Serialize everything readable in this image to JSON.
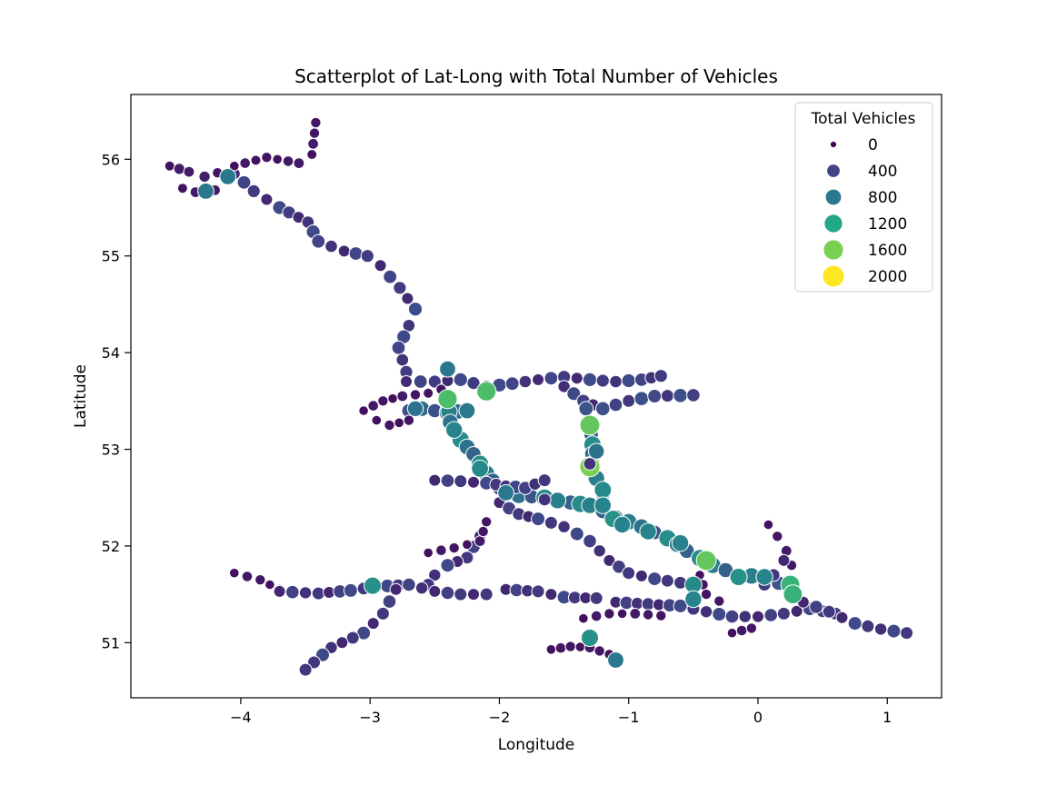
{
  "chart_data": {
    "type": "scatter",
    "title": "Scatterplot of Lat-Long with Total Number of Vehicles",
    "xlabel": "Longitude",
    "ylabel": "Latitude",
    "xlim": [
      -4.85,
      1.42
    ],
    "ylim": [
      50.43,
      56.67
    ],
    "xticks": [
      -4,
      -3,
      -2,
      -1,
      0,
      1
    ],
    "xtick_labels": [
      "−4",
      "−3",
      "−2",
      "−1",
      "0",
      "1"
    ],
    "yticks": [
      51,
      52,
      53,
      54,
      55,
      56
    ],
    "ytick_labels": [
      "51",
      "52",
      "53",
      "54",
      "55",
      "56"
    ],
    "grid": false,
    "legend": {
      "title": "Total Vehicles",
      "placement": "top-right",
      "entries": [
        {
          "label": "0",
          "value": 0,
          "color": "#440154"
        },
        {
          "label": "400",
          "value": 400,
          "color": "#414487"
        },
        {
          "label": "800",
          "value": 800,
          "color": "#2a788e"
        },
        {
          "label": "1200",
          "value": 1200,
          "color": "#22a884"
        },
        {
          "label": "1600",
          "value": 1600,
          "color": "#7ad151"
        },
        {
          "label": "2000",
          "value": 2000,
          "color": "#fde725"
        }
      ]
    },
    "marker_edge_color": "#ffffff",
    "polylines": [
      {
        "v": 150,
        "pts": [
          [
            -4.55,
            55.93
          ],
          [
            -4.4,
            55.87
          ],
          [
            -4.28,
            55.82
          ],
          [
            -4.18,
            55.86
          ],
          [
            -4.08,
            55.84
          ]
        ]
      },
      {
        "v": 350,
        "pts": [
          [
            -4.05,
            55.85
          ],
          [
            -3.9,
            55.67
          ],
          [
            -3.7,
            55.5
          ],
          [
            -3.48,
            55.35
          ],
          [
            -3.4,
            55.15
          ],
          [
            -3.2,
            55.05
          ],
          [
            -3.02,
            55.0
          ],
          [
            -2.92,
            54.9
          ]
        ]
      },
      {
        "v": 350,
        "pts": [
          [
            -2.92,
            54.9
          ],
          [
            -2.77,
            54.67
          ],
          [
            -2.65,
            54.45
          ],
          [
            -2.7,
            54.28
          ],
          [
            -2.78,
            54.05
          ],
          [
            -2.72,
            53.8
          ]
        ]
      },
      {
        "v": 120,
        "pts": [
          [
            -4.05,
            55.93
          ],
          [
            -3.8,
            56.02
          ],
          [
            -3.55,
            55.96
          ],
          [
            -3.45,
            56.05
          ],
          [
            -3.42,
            56.38
          ]
        ]
      },
      {
        "v": 150,
        "pts": [
          [
            -4.45,
            55.7
          ],
          [
            -4.35,
            55.66
          ],
          [
            -4.2,
            55.68
          ]
        ]
      },
      {
        "v": 350,
        "pts": [
          [
            -2.72,
            53.7
          ],
          [
            -2.5,
            53.7
          ],
          [
            -2.3,
            53.72
          ],
          [
            -2.1,
            53.65
          ],
          [
            -1.9,
            53.68
          ],
          [
            -1.7,
            53.72
          ],
          [
            -1.5,
            53.75
          ],
          [
            -1.3,
            53.72
          ],
          [
            -1.1,
            53.7
          ],
          [
            -0.9,
            53.72
          ],
          [
            -0.75,
            53.76
          ]
        ]
      },
      {
        "v": 380,
        "pts": [
          [
            -1.5,
            53.65
          ],
          [
            -1.35,
            53.5
          ],
          [
            -1.2,
            53.42
          ],
          [
            -1.0,
            53.5
          ],
          [
            -0.8,
            53.55
          ],
          [
            -0.5,
            53.56
          ]
        ]
      },
      {
        "v": 700,
        "pts": [
          [
            -2.7,
            53.4
          ],
          [
            -2.6,
            53.42
          ],
          [
            -2.4,
            53.38
          ],
          [
            -2.25,
            53.4
          ]
        ]
      },
      {
        "v": 120,
        "pts": [
          [
            -3.05,
            53.4
          ],
          [
            -2.9,
            53.5
          ],
          [
            -2.75,
            53.55
          ],
          [
            -2.55,
            53.58
          ],
          [
            -2.45,
            53.62
          ]
        ]
      },
      {
        "v": 120,
        "pts": [
          [
            -2.95,
            53.3
          ],
          [
            -2.85,
            53.25
          ],
          [
            -2.7,
            53.3
          ]
        ]
      },
      {
        "v": 750,
        "pts": [
          [
            -2.4,
            53.5
          ],
          [
            -2.38,
            53.28
          ],
          [
            -2.3,
            53.1
          ],
          [
            -2.2,
            52.95
          ],
          [
            -2.1,
            52.75
          ],
          [
            -2.0,
            52.6
          ],
          [
            -1.85,
            52.52
          ],
          [
            -1.65,
            52.5
          ],
          [
            -1.45,
            52.45
          ],
          [
            -1.3,
            52.42
          ],
          [
            -1.1,
            52.3
          ],
          [
            -0.9,
            52.2
          ],
          [
            -0.7,
            52.08
          ],
          [
            -0.55,
            51.95
          ],
          [
            -0.35,
            51.8
          ],
          [
            -0.15,
            51.7
          ],
          [
            0.05,
            51.68
          ],
          [
            0.27,
            51.55
          ]
        ]
      },
      {
        "v": 750,
        "pts": [
          [
            -1.33,
            53.42
          ],
          [
            -1.3,
            53.25
          ],
          [
            -1.28,
            53.05
          ],
          [
            -1.28,
            52.85
          ],
          [
            -1.25,
            52.7
          ],
          [
            -1.2,
            52.55
          ]
        ]
      },
      {
        "v": 330,
        "pts": [
          [
            -2.5,
            52.68
          ],
          [
            -2.3,
            52.67
          ],
          [
            -2.1,
            52.65
          ],
          [
            -1.95,
            52.62
          ],
          [
            -1.8,
            52.6
          ],
          [
            -1.65,
            52.68
          ]
        ]
      },
      {
        "v": 330,
        "pts": [
          [
            -2.0,
            52.45
          ],
          [
            -1.85,
            52.33
          ],
          [
            -1.7,
            52.28
          ],
          [
            -1.5,
            52.2
          ],
          [
            -1.3,
            52.05
          ],
          [
            -1.15,
            51.85
          ],
          [
            -1.0,
            51.72
          ],
          [
            -0.8,
            51.66
          ],
          [
            -0.6,
            51.62
          ]
        ]
      },
      {
        "v": 330,
        "pts": [
          [
            -2.15,
            52.1
          ],
          [
            -2.25,
            51.88
          ],
          [
            -2.4,
            51.8
          ],
          [
            -2.5,
            51.7
          ],
          [
            -2.55,
            51.6
          ]
        ]
      },
      {
        "v": 120,
        "pts": [
          [
            -2.55,
            51.93
          ],
          [
            -2.35,
            51.98
          ],
          [
            -2.15,
            52.05
          ],
          [
            -2.1,
            52.25
          ]
        ]
      },
      {
        "v": 120,
        "pts": [
          [
            -4.05,
            51.72
          ],
          [
            -3.85,
            51.65
          ],
          [
            -3.7,
            51.55
          ]
        ]
      },
      {
        "v": 330,
        "pts": [
          [
            -3.7,
            51.53
          ],
          [
            -3.4,
            51.51
          ],
          [
            -3.15,
            51.54
          ],
          [
            -2.95,
            51.58
          ],
          [
            -2.7,
            51.6
          ],
          [
            -2.5,
            51.53
          ],
          [
            -2.3,
            51.5
          ],
          [
            -2.1,
            51.5
          ]
        ]
      },
      {
        "v": 330,
        "pts": [
          [
            -1.95,
            51.55
          ],
          [
            -1.7,
            51.53
          ],
          [
            -1.5,
            51.47
          ],
          [
            -1.25,
            51.46
          ]
        ]
      },
      {
        "v": 330,
        "pts": [
          [
            -2.8,
            51.55
          ],
          [
            -2.9,
            51.3
          ],
          [
            -3.05,
            51.1
          ],
          [
            -3.3,
            50.95
          ],
          [
            -3.5,
            50.72
          ]
        ]
      },
      {
        "v": 330,
        "pts": [
          [
            -1.1,
            51.42
          ],
          [
            -0.85,
            51.4
          ],
          [
            -0.6,
            51.38
          ],
          [
            -0.4,
            51.32
          ],
          [
            -0.2,
            51.27
          ],
          [
            0.0,
            51.27
          ],
          [
            0.2,
            51.3
          ],
          [
            0.4,
            51.35
          ],
          [
            0.6,
            51.3
          ]
        ]
      },
      {
        "v": 330,
        "pts": [
          [
            0.35,
            51.42
          ],
          [
            0.55,
            51.32
          ],
          [
            0.75,
            51.2
          ],
          [
            0.95,
            51.14
          ],
          [
            1.15,
            51.1
          ]
        ]
      },
      {
        "v": 120,
        "pts": [
          [
            -1.35,
            51.25
          ],
          [
            -1.15,
            51.3
          ],
          [
            -0.95,
            51.3
          ],
          [
            -0.75,
            51.28
          ]
        ]
      },
      {
        "v": 120,
        "pts": [
          [
            -1.6,
            50.93
          ],
          [
            -1.45,
            50.96
          ],
          [
            -1.3,
            50.95
          ],
          [
            -1.15,
            50.88
          ],
          [
            -1.08,
            50.82
          ]
        ]
      },
      {
        "v": 120,
        "pts": [
          [
            0.08,
            52.22
          ],
          [
            0.15,
            52.1
          ],
          [
            0.22,
            51.95
          ],
          [
            0.26,
            51.8
          ]
        ]
      },
      {
        "v": 330,
        "pts": [
          [
            0.2,
            51.85
          ],
          [
            0.12,
            51.7
          ],
          [
            0.05,
            51.6
          ]
        ]
      },
      {
        "v": 120,
        "pts": [
          [
            -0.45,
            51.7
          ],
          [
            -0.4,
            51.5
          ],
          [
            -0.3,
            51.43
          ]
        ]
      },
      {
        "v": 120,
        "pts": [
          [
            -0.2,
            51.1
          ],
          [
            -0.05,
            51.15
          ]
        ]
      }
    ],
    "points": [
      {
        "x": -4.27,
        "y": 55.67,
        "v": 800
      },
      {
        "x": -4.1,
        "y": 55.82,
        "v": 800
      },
      {
        "x": -2.4,
        "y": 53.83,
        "v": 800
      },
      {
        "x": -2.4,
        "y": 53.52,
        "v": 1400
      },
      {
        "x": -2.1,
        "y": 53.6,
        "v": 1400
      },
      {
        "x": -2.35,
        "y": 53.2,
        "v": 900
      },
      {
        "x": -2.15,
        "y": 52.8,
        "v": 950
      },
      {
        "x": -1.3,
        "y": 53.25,
        "v": 1500
      },
      {
        "x": -1.3,
        "y": 52.82,
        "v": 1600
      },
      {
        "x": -1.3,
        "y": 52.85,
        "v": 300
      },
      {
        "x": -1.2,
        "y": 52.58,
        "v": 950
      },
      {
        "x": -1.12,
        "y": 52.28,
        "v": 1000
      },
      {
        "x": -1.05,
        "y": 52.22,
        "v": 900
      },
      {
        "x": -0.85,
        "y": 52.15,
        "v": 900
      },
      {
        "x": -0.6,
        "y": 52.03,
        "v": 900
      },
      {
        "x": -0.4,
        "y": 51.85,
        "v": 1500
      },
      {
        "x": -0.5,
        "y": 51.6,
        "v": 950
      },
      {
        "x": -0.5,
        "y": 51.45,
        "v": 900
      },
      {
        "x": -0.15,
        "y": 51.68,
        "v": 1000
      },
      {
        "x": 0.25,
        "y": 51.6,
        "v": 1300
      },
      {
        "x": 0.27,
        "y": 51.5,
        "v": 1300
      },
      {
        "x": -2.98,
        "y": 51.59,
        "v": 1000
      },
      {
        "x": -1.3,
        "y": 51.05,
        "v": 1000
      },
      {
        "x": -1.1,
        "y": 50.82,
        "v": 800
      },
      {
        "x": -2.65,
        "y": 53.42,
        "v": 750
      },
      {
        "x": -2.25,
        "y": 53.4,
        "v": 800
      },
      {
        "x": -1.55,
        "y": 52.47,
        "v": 850
      },
      {
        "x": -1.2,
        "y": 52.42,
        "v": 900
      },
      {
        "x": -1.25,
        "y": 52.98,
        "v": 750
      },
      {
        "x": 0.05,
        "y": 51.68,
        "v": 900
      },
      {
        "x": -1.95,
        "y": 52.55,
        "v": 800
      },
      {
        "x": -1.65,
        "y": 52.48,
        "v": 300
      }
    ]
  }
}
